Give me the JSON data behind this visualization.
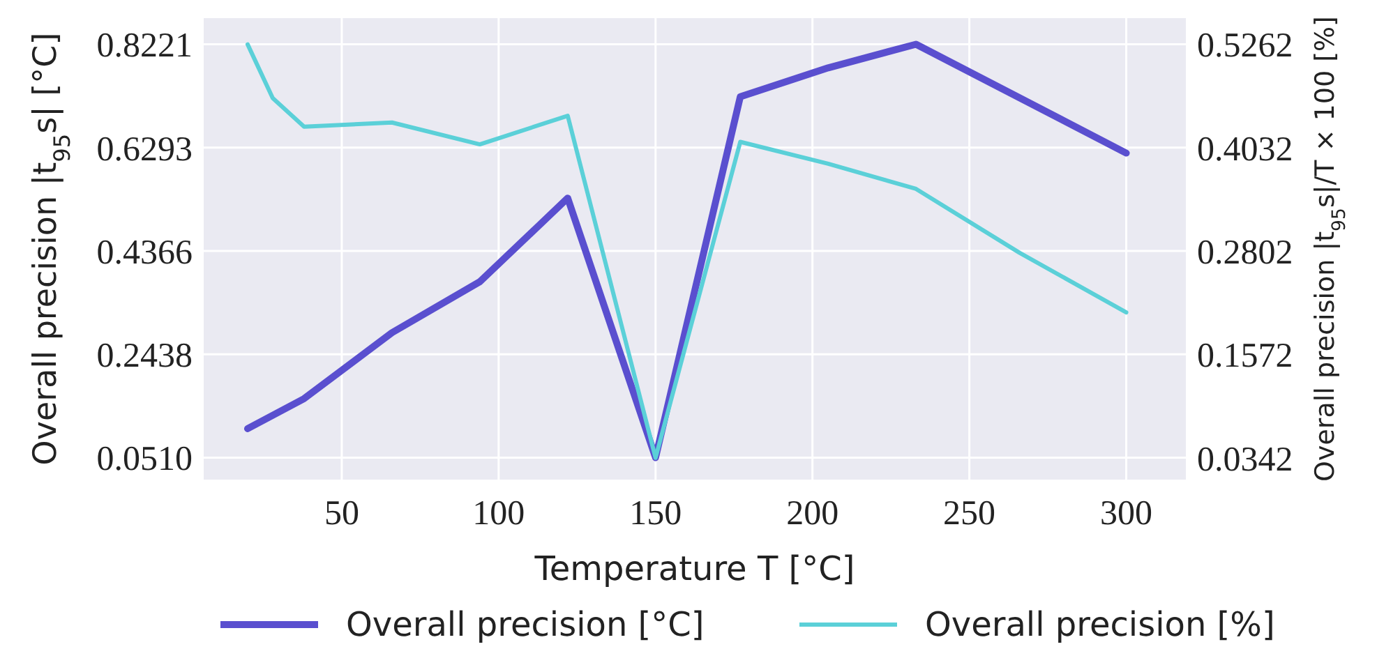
{
  "chart_data": {
    "type": "line",
    "xlabel": "Temperature T [°C]",
    "ylabel": "Overall precision |t$_{95}$s| [°C]",
    "y2label": "Overall precision |t$_{95}$s|/T × 100 [%]",
    "x": [
      20,
      38,
      66,
      94,
      122,
      150,
      177,
      205,
      233,
      300
    ],
    "xlim": [
      6,
      319
    ],
    "xticks": [
      50,
      100,
      150,
      200,
      250,
      300
    ],
    "ylim": [
      0.01,
      0.8707
    ],
    "yticks": [
      {
        "value": 0.051,
        "label": "0.0510"
      },
      0.2438,
      0.4366,
      0.6293,
      0.8221
    ],
    "y2lim": [
      0.0081,
      0.5572
    ],
    "y2ticks": [
      0.0342,
      0.1572,
      0.2802,
      0.4032,
      0.5262
    ],
    "series": [
      {
        "name": "Overall precision [°C]",
        "color": "#5a4fcf",
        "values": [
          0.105,
          0.161,
          0.284,
          0.379,
          0.535,
          0.051,
          0.724,
          0.778,
          0.822,
          0.619
        ]
      },
      {
        "name": "Overall precision [%]",
        "color": "#5bd0d8",
        "axis": "y2",
        "x": [
          20,
          28,
          38,
          66,
          94,
          122,
          150,
          177,
          205,
          233,
          266,
          300
        ],
        "values": [
          0.526,
          0.462,
          0.428,
          0.433,
          0.407,
          0.441,
          0.034,
          0.41,
          0.384,
          0.354,
          0.278,
          0.207
        ]
      }
    ],
    "grid": true,
    "legend": "bottom"
  }
}
